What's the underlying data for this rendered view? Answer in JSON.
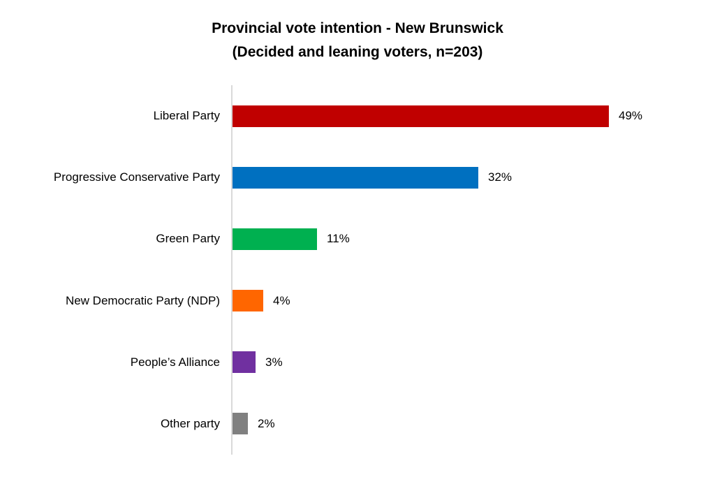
{
  "title": {
    "line1": "Provincial vote intention - New Brunswick",
    "line2": "(Decided and leaning voters, n=203)"
  },
  "chart_data": {
    "type": "bar",
    "orientation": "horizontal",
    "title": "Provincial vote intention - New Brunswick (Decided and leaning voters, n=203)",
    "categories": [
      "Liberal Party",
      "Progressive Conservative Party",
      "Green Party",
      "New Democratic Party (NDP)",
      "People’s Alliance",
      "Other party"
    ],
    "values": [
      49,
      32,
      11,
      4,
      3,
      2
    ],
    "value_labels": [
      "49%",
      "32%",
      "11%",
      "4%",
      "3%",
      "2%"
    ],
    "colors": [
      "#c00000",
      "#0070c0",
      "#00b050",
      "#ff6600",
      "#7030a0",
      "#808080"
    ],
    "xlabel": "",
    "ylabel": "",
    "xlim": [
      0,
      60
    ],
    "grid": false,
    "legend": "none",
    "axis_line_color": "#d9d9d9",
    "background_color": "#ffffff"
  }
}
